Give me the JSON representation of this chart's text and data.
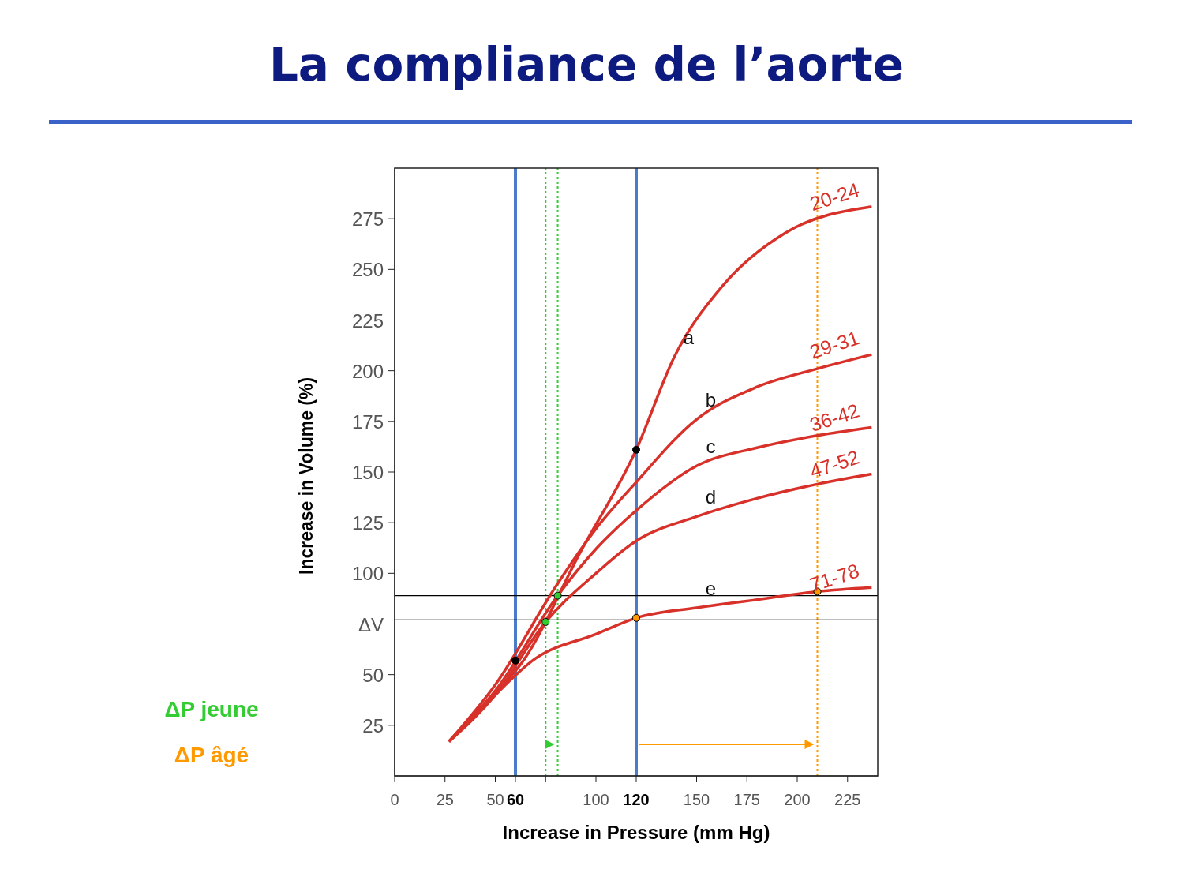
{
  "chart_data": {
    "type": "line",
    "title": "La compliance de l’aorte",
    "xlabel": "Increase in Pressure (mm Hg)",
    "ylabel": "Increase in Volume (%)",
    "xlim": [
      0,
      240
    ],
    "ylim": [
      0,
      300
    ],
    "xticks": [
      0,
      25,
      50,
      60,
      {
        "value": 75,
        "label": null
      },
      100,
      120,
      150,
      175,
      200,
      225
    ],
    "yticks": [
      25,
      50,
      {
        "value": 75,
        "label": "ΔV"
      },
      100,
      125,
      150,
      175,
      200,
      225,
      250,
      275
    ],
    "grid": false,
    "legend": "left",
    "line_style": "solid",
    "series": [
      {
        "name": "20-24",
        "color": "#d7312a",
        "marker": "none",
        "x": [
          27,
          45,
          64,
          92,
          120,
          139,
          163,
          194,
          237
        ],
        "values": [
          17,
          36,
          57,
          110,
          161,
          207,
          242,
          268,
          281
        ]
      },
      {
        "name": "29-31",
        "color": "#d7312a",
        "marker": "none",
        "x": [
          27,
          50,
          81,
          100,
          120,
          150,
          180,
          210,
          237
        ],
        "values": [
          17,
          45,
          95,
          122,
          145,
          176,
          192,
          201,
          208
        ]
      },
      {
        "name": "36-42",
        "color": "#d7312a",
        "marker": "none",
        "x": [
          27,
          50,
          81,
          100,
          120,
          150,
          180,
          210,
          237
        ],
        "values": [
          17,
          42,
          89,
          112,
          131,
          153,
          162,
          168,
          172
        ]
      },
      {
        "name": "47-52",
        "color": "#d7312a",
        "marker": "none",
        "x": [
          27,
          50,
          75,
          100,
          120,
          150,
          180,
          210,
          237
        ],
        "values": [
          17,
          40,
          76,
          100,
          116,
          128,
          137,
          144,
          149
        ]
      },
      {
        "name": "71-78",
        "color": "#d7312a",
        "marker": "none",
        "x": [
          27,
          45,
          70,
          100,
          120,
          150,
          180,
          210,
          237
        ],
        "values": [
          17,
          35,
          58,
          70,
          78,
          83,
          87,
          91,
          93
        ]
      },
      {
        "type": "scatter",
        "color": "#000000",
        "marker": "circle",
        "x": [
          60,
          120
        ],
        "values": [
          57,
          161
        ]
      },
      {
        "type": "scatter",
        "name": "ΔP jeune",
        "color": "#33cc33",
        "marker": "circle",
        "x": [
          75,
          81
        ],
        "values": [
          76,
          89
        ]
      },
      {
        "type": "scatter",
        "name": "ΔP âgé",
        "color": "#ff9900",
        "marker": "circle",
        "x": [
          120,
          210
        ],
        "values": [
          78,
          91
        ]
      }
    ],
    "ref_lines": [
      {
        "axis": "x",
        "value": 60,
        "color": "#4a7cc9",
        "line_style": "solid"
      },
      {
        "axis": "x",
        "value": 120,
        "color": "#4a7cc9",
        "line_style": "solid"
      },
      {
        "axis": "x",
        "value": 75,
        "color": "#33cc33",
        "line_style": "dotted"
      },
      {
        "axis": "x",
        "value": 81,
        "color": "#33cc33",
        "line_style": "dotted"
      },
      {
        "axis": "x",
        "value": 210,
        "color": "#ff9900",
        "line_style": "dotted"
      },
      {
        "axis": "y",
        "value": 77,
        "color": "#000000",
        "line_style": "solid"
      },
      {
        "axis": "y",
        "value": 89,
        "color": "#000000",
        "line_style": "solid"
      }
    ],
    "annotations": [
      "a",
      "b",
      "c",
      "d",
      "e"
    ]
  }
}
